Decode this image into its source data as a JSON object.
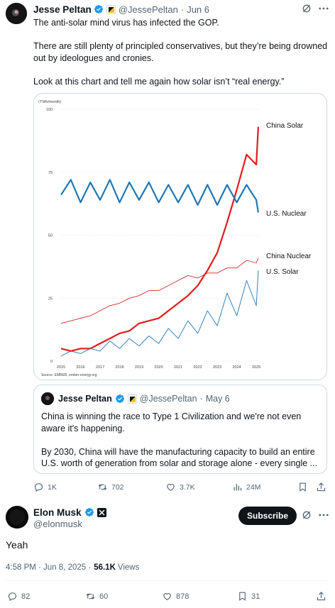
{
  "tweet": {
    "author_name": "Jesse Peltan",
    "handle": "@JessePeltan",
    "date_sep": "·",
    "date": "Jun 6",
    "paragraphs": [
      "The anti-solar mind virus has infected the GOP.",
      "There are still plenty of principled conservatives, but they’re being drowned out by ideologues and cronies.",
      "Look at this chart and tell me again how solar isn’t “real energy.”"
    ],
    "colors": {
      "verified": "#1d9bf0",
      "text": "#0f1419",
      "muted": "#536471"
    }
  },
  "chart_data": {
    "type": "line",
    "title": "",
    "ylabel": "(TWh/month)",
    "source": "Source: EMBER, ember-energy.org",
    "ylim": [
      0,
      100
    ],
    "yticks": [
      "0",
      "25",
      "50",
      "75",
      "100"
    ],
    "xlim": [
      2015,
      2025.25
    ],
    "xticks": [
      "2015",
      "2016",
      "2017",
      "2018",
      "2019",
      "2020",
      "2021",
      "2022",
      "2023",
      "2024",
      "2025"
    ],
    "series": [
      {
        "name": "China Solar",
        "color": "#e41a1c",
        "x": [
          2015,
          2015.5,
          2016,
          2016.5,
          2017,
          2017.5,
          2018,
          2018.5,
          2019,
          2019.5,
          2020,
          2020.5,
          2021,
          2021.5,
          2022,
          2022.5,
          2023,
          2023.5,
          2024,
          2024.5,
          2025,
          2025.1
        ],
        "values": [
          5,
          4,
          5,
          5,
          7,
          9,
          11,
          12,
          15,
          16,
          17,
          20,
          23,
          26,
          30,
          36,
          43,
          55,
          68,
          82,
          78,
          93
        ]
      },
      {
        "name": "U.S. Nuclear",
        "color": "#1f77b4",
        "x": [
          2015,
          2015.5,
          2016,
          2016.5,
          2017,
          2017.5,
          2018,
          2018.5,
          2019,
          2019.5,
          2020,
          2020.5,
          2021,
          2021.5,
          2022,
          2022.5,
          2023,
          2023.5,
          2024,
          2024.5,
          2025,
          2025.1
        ],
        "values": [
          66,
          72,
          63,
          71,
          64,
          72,
          63,
          71,
          64,
          71,
          63,
          70,
          63,
          70,
          62,
          70,
          62,
          70,
          63,
          70,
          64,
          59
        ]
      },
      {
        "name": "China Nuclear",
        "color": "#d62728",
        "x": [
          2015,
          2015.5,
          2016,
          2016.5,
          2017,
          2017.5,
          2018,
          2018.5,
          2019,
          2019.5,
          2020,
          2020.5,
          2021,
          2021.5,
          2022,
          2022.5,
          2023,
          2023.5,
          2024,
          2024.5,
          2025,
          2025.1
        ],
        "values": [
          15,
          16,
          17,
          18,
          20,
          22,
          23,
          25,
          26,
          28,
          28,
          30,
          32,
          34,
          33,
          35,
          35,
          37,
          37,
          40,
          39,
          41
        ]
      },
      {
        "name": "U.S. Solar",
        "color": "#1f77b4",
        "x": [
          2015,
          2015.5,
          2016,
          2016.5,
          2017,
          2017.5,
          2018,
          2018.5,
          2019,
          2019.5,
          2020,
          2020.5,
          2021,
          2021.5,
          2022,
          2022.5,
          2023,
          2023.5,
          2024,
          2024.5,
          2025,
          2025.1
        ],
        "values": [
          2,
          4,
          3,
          5,
          4,
          8,
          5,
          9,
          6,
          10,
          7,
          13,
          9,
          16,
          11,
          20,
          14,
          27,
          18,
          32,
          22,
          36
        ]
      }
    ]
  },
  "quote": {
    "author_name": "Jesse Peltan",
    "handle": "@JessePeltan",
    "date_sep": "·",
    "date": "May 6",
    "paragraphs": [
      "China is winning the race to Type 1 Civilization and we're not even aware it's happening.",
      "By 2030, China will have the manufacturing capacity to build an entire U.S. worth of generation from solar and storage alone - every single ..."
    ]
  },
  "tweet_actions": {
    "replies": "1K",
    "retweets": "702",
    "likes": "3.7K",
    "views": "24M",
    "icons": [
      "reply-icon",
      "retweet-icon",
      "like-icon",
      "views-icon",
      "bookmark-icon",
      "share-icon"
    ]
  },
  "reply": {
    "author_name": "Elon Musk",
    "handle": "@elonmusk",
    "subscribe_label": "Subscribe",
    "text": "Yeah",
    "time": "4:58 PM · Jun 8, 2025 ·",
    "views_count": "56.1K",
    "views_label": "Views",
    "badge_color": "#1d9bf0"
  },
  "reply_actions": {
    "replies": "82",
    "retweets": "60",
    "likes": "878",
    "bookmarks": "31"
  }
}
